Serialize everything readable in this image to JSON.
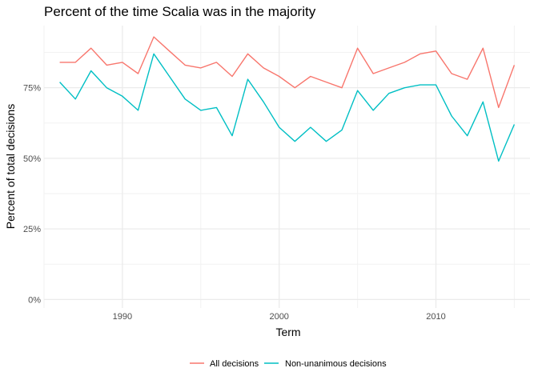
{
  "chart_data": {
    "type": "line",
    "title": "Percent of the time Scalia was in the majority",
    "xlabel": "Term",
    "ylabel": "Percent of total decisions",
    "xlim": [
      1985,
      2016
    ],
    "ylim": [
      0,
      1
    ],
    "x_ticks": [
      1990,
      2000,
      2010
    ],
    "y_ticks": [
      0,
      0.25,
      0.5,
      0.75
    ],
    "y_tick_labels": [
      "0%",
      "25%",
      "50%",
      "75%"
    ],
    "grid": true,
    "legend_position": "bottom",
    "series": [
      {
        "name": "All decisions",
        "color": "#F8766D",
        "points": [
          [
            1986,
            0.84
          ],
          [
            1987,
            0.84
          ],
          [
            1988,
            0.89
          ],
          [
            1989,
            0.83
          ],
          [
            1990,
            0.84
          ],
          [
            1991,
            0.8
          ],
          [
            1992,
            0.93
          ],
          [
            1993,
            0.88
          ],
          [
            1994,
            0.83
          ],
          [
            1995,
            0.82
          ],
          [
            1996,
            0.84
          ],
          [
            1997,
            0.79
          ],
          [
            1998,
            0.87
          ],
          [
            1999,
            0.82
          ],
          [
            2000,
            0.79
          ],
          [
            2001,
            0.75
          ],
          [
            2002,
            0.79
          ],
          [
            2003,
            0.77
          ],
          [
            2004,
            0.75
          ],
          [
            2005,
            0.89
          ],
          [
            2006,
            0.8
          ],
          [
            2007,
            0.82
          ],
          [
            2008,
            0.84
          ],
          [
            2009,
            0.87
          ],
          [
            2010,
            0.88
          ],
          [
            2011,
            0.8
          ],
          [
            2012,
            0.78
          ],
          [
            2013,
            0.89
          ],
          [
            2014,
            0.68
          ],
          [
            2015,
            0.83
          ]
        ]
      },
      {
        "name": "Non-unanimous decisions",
        "color": "#00BFC4",
        "points": [
          [
            1986,
            0.77
          ],
          [
            1987,
            0.71
          ],
          [
            1988,
            0.81
          ],
          [
            1989,
            0.75
          ],
          [
            1990,
            0.72
          ],
          [
            1991,
            0.67
          ],
          [
            1992,
            0.87
          ],
          [
            1993,
            0.79
          ],
          [
            1994,
            0.71
          ],
          [
            1995,
            0.67
          ],
          [
            1996,
            0.68
          ],
          [
            1997,
            0.58
          ],
          [
            1998,
            0.78
          ],
          [
            1999,
            0.7
          ],
          [
            2000,
            0.61
          ],
          [
            2001,
            0.56
          ],
          [
            2002,
            0.61
          ],
          [
            2003,
            0.56
          ],
          [
            2004,
            0.6
          ],
          [
            2005,
            0.74
          ],
          [
            2006,
            0.67
          ],
          [
            2007,
            0.73
          ],
          [
            2008,
            0.75
          ],
          [
            2009,
            0.76
          ],
          [
            2010,
            0.76
          ],
          [
            2011,
            0.65
          ],
          [
            2012,
            0.58
          ],
          [
            2013,
            0.7
          ],
          [
            2014,
            0.49
          ],
          [
            2015,
            0.62
          ]
        ]
      }
    ]
  }
}
